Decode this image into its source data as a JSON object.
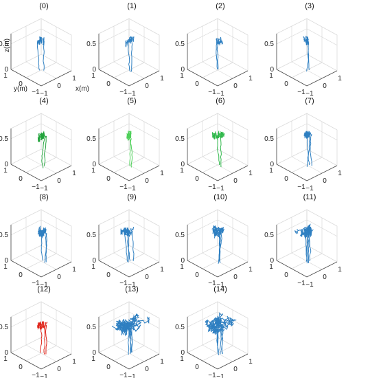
{
  "chart_data": {
    "type": "line",
    "layout": "small-multiples-3d",
    "axis_labels": {
      "x": "x(m)",
      "y": "y(m)",
      "z": "z(m)"
    },
    "ticks": {
      "z": [
        "0",
        "0.5"
      ],
      "y": [
        "1",
        "0",
        "−1"
      ],
      "x": [
        "−1",
        "0",
        "1"
      ]
    },
    "xlim": [
      -1,
      1
    ],
    "ylim": [
      -1,
      1
    ],
    "zlim": [
      0,
      0.7
    ],
    "grid": true,
    "panels": [
      {
        "title": "(0)",
        "color": "#2e7fc1",
        "strands": 2,
        "canopy_spread": 0.25,
        "canopy_density": 4
      },
      {
        "title": "(1)",
        "color": "#2e7fc1",
        "strands": 2,
        "canopy_spread": 0.3,
        "canopy_density": 4
      },
      {
        "title": "(2)",
        "color": "#2e7fc1",
        "strands": 2,
        "canopy_spread": 0.3,
        "canopy_density": 4
      },
      {
        "title": "(3)",
        "color": "#2e7fc1",
        "strands": 2,
        "canopy_spread": 0.3,
        "canopy_density": 5
      },
      {
        "title": "(4)",
        "color": "#21a33b",
        "strands": 2,
        "canopy_spread": 0.35,
        "canopy_density": 7
      },
      {
        "title": "(5)",
        "color": "#4fd05a",
        "strands": 2,
        "canopy_spread": 0.35,
        "canopy_density": 5
      },
      {
        "title": "(6)",
        "color": "#2fb84a",
        "strands": 2,
        "canopy_spread": 0.35,
        "canopy_density": 7
      },
      {
        "title": "(7)",
        "color": "#2e7fc1",
        "strands": 3,
        "canopy_spread": 0.35,
        "canopy_density": 7
      },
      {
        "title": "(8)",
        "color": "#2e7fc1",
        "strands": 3,
        "canopy_spread": 0.4,
        "canopy_density": 9
      },
      {
        "title": "(9)",
        "color": "#2e7fc1",
        "strands": 4,
        "canopy_spread": 0.4,
        "canopy_density": 9
      },
      {
        "title": "(10)",
        "color": "#2e7fc1",
        "strands": 5,
        "canopy_spread": 0.5,
        "canopy_density": 11
      },
      {
        "title": "(11)",
        "color": "#2e7fc1",
        "strands": 5,
        "canopy_spread": 0.55,
        "canopy_density": 13
      },
      {
        "title": "(12)",
        "color": "#e0261b",
        "strands": 3,
        "canopy_spread": 0.35,
        "canopy_density": 5
      },
      {
        "title": "(13)",
        "color": "#2e7fc1",
        "strands": 6,
        "canopy_spread": 1.0,
        "canopy_density": 24
      },
      {
        "title": "(14)",
        "color": "#2e7fc1",
        "strands": 6,
        "canopy_spread": 1.0,
        "canopy_density": 24
      }
    ]
  }
}
